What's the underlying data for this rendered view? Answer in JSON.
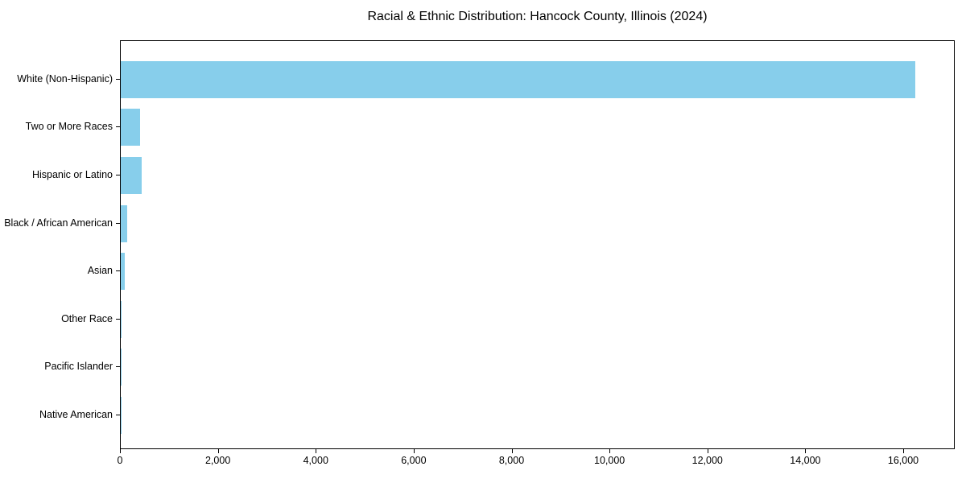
{
  "chart_data": {
    "type": "bar",
    "orientation": "horizontal",
    "title": "Racial & Ethnic Distribution: Hancock County, Illinois (2024)",
    "categories": [
      "White (Non-Hispanic)",
      "Two or More Races",
      "Hispanic or Latino",
      "Black / African American",
      "Asian",
      "Other Race",
      "Pacific Islander",
      "Native American"
    ],
    "values": [
      16230,
      400,
      425,
      130,
      75,
      20,
      5,
      2
    ],
    "xlabel": "",
    "ylabel": "",
    "xlim": [
      0,
      17052
    ],
    "x_ticks": [
      0,
      2000,
      4000,
      6000,
      8000,
      10000,
      12000,
      14000,
      16000
    ],
    "x_tick_labels": [
      "0",
      "2,000",
      "4,000",
      "6,000",
      "8,000",
      "10,000",
      "12,000",
      "14,000",
      "16,000"
    ],
    "bar_color": "#87CEEB",
    "axis_color": "#000000",
    "text_color": "#000000",
    "background_color": "#ffffff",
    "grid": false,
    "legend": null
  }
}
